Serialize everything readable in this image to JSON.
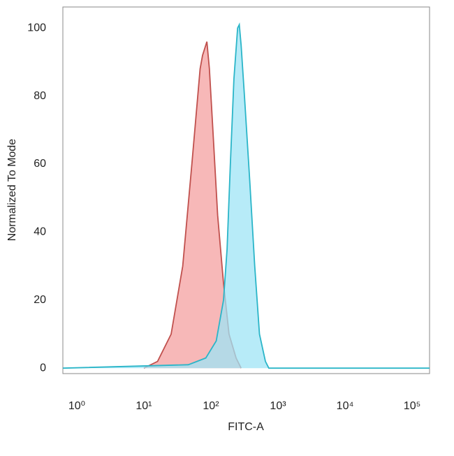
{
  "chart_data": {
    "type": "histogram-overlay",
    "xlabel": "FITC-A",
    "ylabel": "Normalized To Mode",
    "xscale": "log",
    "grid": false,
    "xlim": [
      0.62,
      182000
    ],
    "ylim": [
      -1.6,
      106.2
    ],
    "xticks": [
      {
        "value": 1,
        "label": "10⁰"
      },
      {
        "value": 10,
        "label": "10¹"
      },
      {
        "value": 100,
        "label": "10²"
      },
      {
        "value": 1000,
        "label": "10³"
      },
      {
        "value": 10000,
        "label": "10⁴"
      },
      {
        "value": 100000,
        "label": "10⁵"
      }
    ],
    "yticks": [
      0,
      20,
      40,
      60,
      80,
      100
    ],
    "series": [
      {
        "color": "#c0504d",
        "fill": "#f4a0a0",
        "x": [
          10,
          16,
          25.5,
          38,
          52,
          69,
          75,
          87,
          95,
          107,
          126,
          154,
          186,
          237,
          282
        ],
        "values": [
          0,
          2,
          10,
          30,
          60,
          88,
          92,
          96,
          88,
          70,
          45,
          25,
          10,
          3,
          0
        ]
      },
      {
        "color": "#2ab5c8",
        "fill": "#9fe4f5",
        "x": [
          0.62,
          46,
          84,
          120,
          154,
          174,
          195,
          220,
          250,
          265,
          282,
          316,
          380,
          450,
          530,
          650,
          730,
          182000
        ],
        "values": [
          0,
          1,
          3,
          8,
          20,
          35,
          60,
          85,
          100,
          101,
          95,
          80,
          55,
          30,
          10,
          2,
          0,
          0
        ]
      }
    ]
  }
}
